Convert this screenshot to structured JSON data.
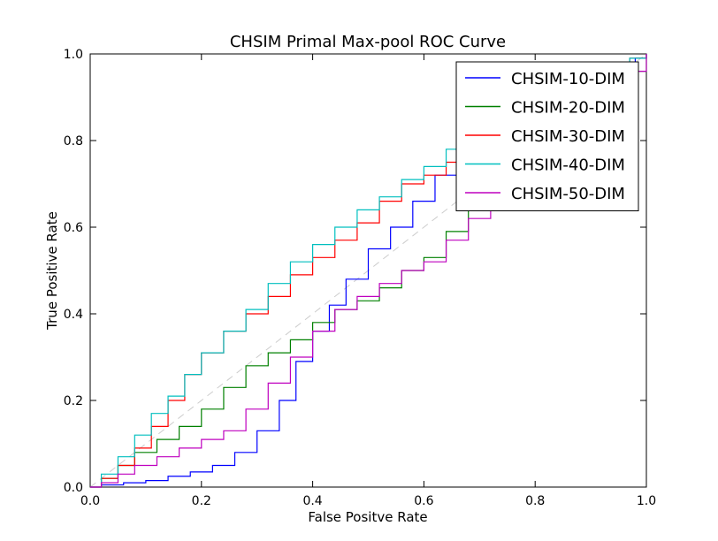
{
  "chart_data": {
    "type": "line",
    "title": "CHSIM Primal Max-pool ROC Curve",
    "xlabel": "False Positve Rate",
    "ylabel": "True Positive Rate",
    "xlim": [
      0,
      1
    ],
    "ylim": [
      0,
      1
    ],
    "xticks": [
      "0.0",
      "0.2",
      "0.4",
      "0.6",
      "0.8",
      "1.0"
    ],
    "yticks": [
      "0.0",
      "0.2",
      "0.4",
      "0.6",
      "0.8",
      "1.0"
    ],
    "grid": false,
    "legend_position": "top-right",
    "diagonal": {
      "x": [
        0,
        1
      ],
      "y": [
        0,
        1
      ],
      "color": "#cccccc",
      "style": "dashed"
    },
    "series": [
      {
        "name": "CHSIM-10-DIM",
        "color": "#0000ff",
        "x": [
          0.0,
          0.02,
          0.06,
          0.1,
          0.14,
          0.18,
          0.22,
          0.26,
          0.3,
          0.34,
          0.37,
          0.4,
          0.43,
          0.46,
          0.5,
          0.54,
          0.58,
          0.62,
          0.66,
          0.7,
          0.76,
          0.82,
          0.88,
          0.94,
          0.98,
          1.0
        ],
        "y": [
          0.0,
          0.005,
          0.01,
          0.015,
          0.025,
          0.035,
          0.05,
          0.08,
          0.13,
          0.2,
          0.29,
          0.36,
          0.42,
          0.48,
          0.55,
          0.6,
          0.66,
          0.72,
          0.76,
          0.8,
          0.85,
          0.89,
          0.93,
          0.97,
          0.99,
          1.0
        ]
      },
      {
        "name": "CHSIM-20-DIM",
        "color": "#008000",
        "x": [
          0.0,
          0.02,
          0.05,
          0.08,
          0.12,
          0.16,
          0.2,
          0.24,
          0.28,
          0.32,
          0.36,
          0.4,
          0.44,
          0.48,
          0.52,
          0.56,
          0.6,
          0.64,
          0.68,
          0.72,
          0.78,
          0.84,
          0.9,
          0.95,
          1.0
        ],
        "y": [
          0.0,
          0.02,
          0.05,
          0.08,
          0.11,
          0.14,
          0.18,
          0.23,
          0.28,
          0.31,
          0.34,
          0.38,
          0.41,
          0.43,
          0.46,
          0.5,
          0.53,
          0.59,
          0.64,
          0.68,
          0.76,
          0.84,
          0.91,
          0.96,
          1.0
        ]
      },
      {
        "name": "CHSIM-30-DIM",
        "color": "#ff0000",
        "x": [
          0.0,
          0.02,
          0.05,
          0.08,
          0.11,
          0.14,
          0.17,
          0.2,
          0.24,
          0.28,
          0.32,
          0.36,
          0.4,
          0.44,
          0.48,
          0.52,
          0.56,
          0.6,
          0.64,
          0.68,
          0.74,
          0.8,
          0.86,
          0.92,
          0.97,
          1.0
        ],
        "y": [
          0.0,
          0.02,
          0.05,
          0.09,
          0.14,
          0.2,
          0.26,
          0.31,
          0.36,
          0.4,
          0.44,
          0.49,
          0.53,
          0.57,
          0.61,
          0.66,
          0.7,
          0.72,
          0.75,
          0.78,
          0.82,
          0.87,
          0.92,
          0.96,
          0.99,
          1.0
        ]
      },
      {
        "name": "CHSIM-40-DIM",
        "color": "#00bfbf",
        "x": [
          0.0,
          0.02,
          0.05,
          0.08,
          0.11,
          0.14,
          0.17,
          0.2,
          0.24,
          0.28,
          0.32,
          0.36,
          0.4,
          0.44,
          0.48,
          0.52,
          0.56,
          0.6,
          0.64,
          0.68,
          0.74,
          0.8,
          0.86,
          0.92,
          0.97,
          1.0
        ],
        "y": [
          0.0,
          0.03,
          0.07,
          0.12,
          0.17,
          0.21,
          0.26,
          0.31,
          0.36,
          0.41,
          0.47,
          0.52,
          0.56,
          0.6,
          0.64,
          0.67,
          0.71,
          0.74,
          0.78,
          0.81,
          0.85,
          0.89,
          0.93,
          0.96,
          0.99,
          1.0
        ]
      },
      {
        "name": "CHSIM-50-DIM",
        "color": "#bf00bf",
        "x": [
          0.0,
          0.02,
          0.05,
          0.08,
          0.12,
          0.16,
          0.2,
          0.24,
          0.28,
          0.32,
          0.36,
          0.4,
          0.44,
          0.48,
          0.52,
          0.56,
          0.6,
          0.64,
          0.68,
          0.72,
          0.78,
          0.84,
          0.9,
          0.95,
          1.0
        ],
        "y": [
          0.0,
          0.01,
          0.03,
          0.05,
          0.07,
          0.09,
          0.11,
          0.13,
          0.18,
          0.24,
          0.3,
          0.36,
          0.41,
          0.44,
          0.47,
          0.5,
          0.52,
          0.57,
          0.62,
          0.67,
          0.75,
          0.83,
          0.9,
          0.96,
          1.0
        ]
      }
    ]
  }
}
